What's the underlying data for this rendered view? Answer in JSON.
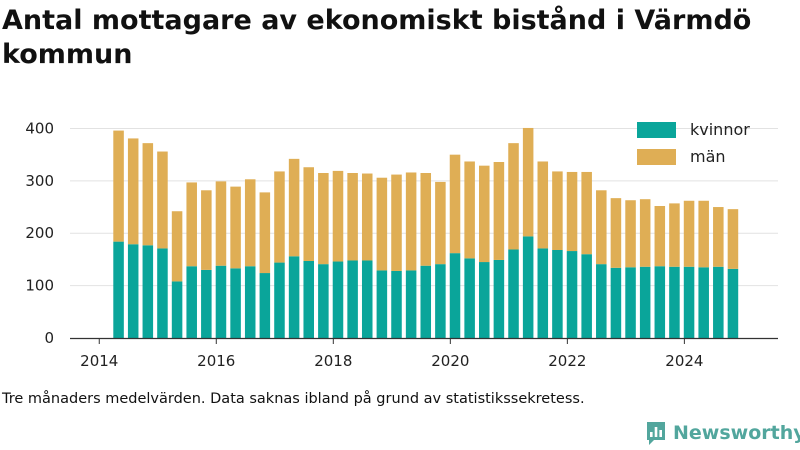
{
  "title": "Antal mottagare av ekonomiskt bistånd i Värmdö kommun",
  "note": "Tre månaders medelvärden. Data saknas ibland på grund av statistikssekretess.",
  "brand": {
    "name": "Newsworthy",
    "icon": "newsworthy-logo-icon",
    "color": "#52a69d"
  },
  "chart_data": {
    "type": "bar",
    "stacked": true,
    "x_ticks": [
      2014,
      2016,
      2018,
      2020,
      2022,
      2024
    ],
    "y_ticks": [
      0,
      100,
      200,
      300,
      400
    ],
    "ylim": [
      0,
      420
    ],
    "xlim": [
      2013.5,
      2025.6
    ],
    "grid": true,
    "legend_position": "top-right",
    "x": [
      2014.33,
      2014.58,
      2014.83,
      2015.08,
      2015.33,
      2015.58,
      2015.83,
      2016.08,
      2016.33,
      2016.58,
      2016.83,
      2017.08,
      2017.33,
      2017.58,
      2017.83,
      2018.08,
      2018.33,
      2018.58,
      2018.83,
      2019.08,
      2019.33,
      2019.58,
      2019.83,
      2020.08,
      2020.33,
      2020.58,
      2020.83,
      2021.08,
      2021.33,
      2021.58,
      2021.83,
      2022.08,
      2022.33,
      2022.58,
      2022.83,
      2023.08,
      2023.33,
      2023.58,
      2023.83,
      2024.08,
      2024.33,
      2024.58,
      2024.83
    ],
    "series": [
      {
        "name": "kvinnor",
        "color": "#0aa59a",
        "values": [
          184,
          179,
          177,
          171,
          108,
          137,
          130,
          138,
          133,
          137,
          124,
          144,
          156,
          147,
          141,
          146,
          148,
          148,
          129,
          128,
          129,
          138,
          141,
          162,
          152,
          145,
          149,
          169,
          194,
          171,
          168,
          166,
          160,
          141,
          134,
          135,
          136,
          137,
          136,
          136,
          135,
          136,
          132
        ]
      },
      {
        "name": "män",
        "color": "#dfae55",
        "values": [
          212,
          202,
          195,
          185,
          134,
          160,
          152,
          161,
          156,
          166,
          154,
          174,
          186,
          179,
          174,
          173,
          167,
          166,
          177,
          184,
          187,
          177,
          157,
          188,
          185,
          184,
          187,
          203,
          207,
          166,
          150,
          151,
          157,
          141,
          133,
          128,
          129,
          115,
          121,
          126,
          127,
          114,
          114
        ]
      }
    ]
  }
}
